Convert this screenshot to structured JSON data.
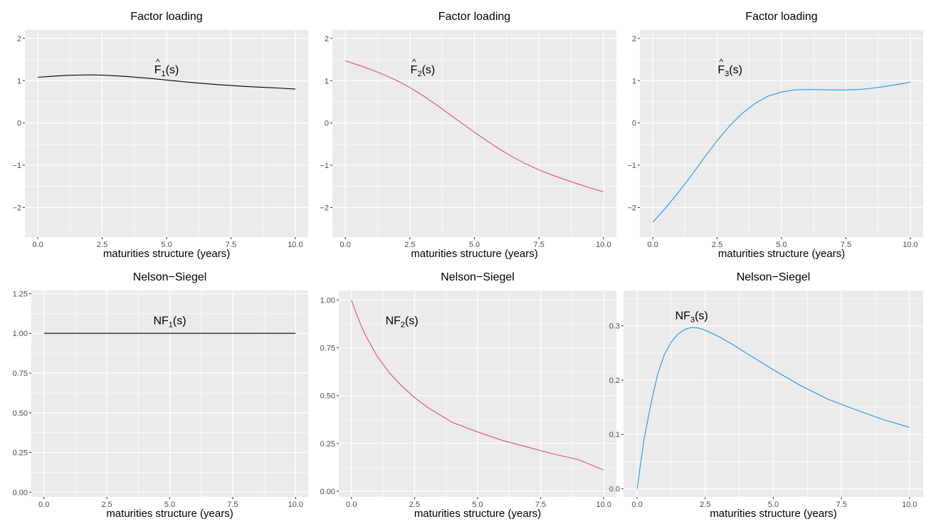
{
  "chart_data": [
    {
      "type": "line",
      "title": "Factor loading",
      "xlabel": "maturities structure (years)",
      "ylabel": "",
      "xlim": [
        -0.5,
        10.5
      ],
      "ylim": [
        -2.7,
        2.2
      ],
      "xticks": [
        0,
        2.5,
        5,
        7.5,
        10
      ],
      "xtick_labels": [
        "0.0",
        "2.5",
        "5.0",
        "7.5",
        "10.0"
      ],
      "yticks": [
        -2,
        -1,
        0,
        1,
        2
      ],
      "ytick_labels": [
        "−2",
        "−1",
        "0",
        "1",
        "2"
      ],
      "grid": true,
      "color": "#000000",
      "annotation": {
        "hat": "^",
        "base": "F",
        "sub": "1",
        "suffix": "(s)",
        "x": 5.0,
        "y": 1.27
      },
      "series": [
        {
          "x": [
            0,
            0.5,
            1,
            1.5,
            2,
            2.5,
            3,
            3.5,
            4,
            4.5,
            5,
            5.5,
            6,
            6.5,
            7,
            7.5,
            8,
            8.5,
            9,
            9.5,
            10
          ],
          "y": [
            1.08,
            1.1,
            1.12,
            1.13,
            1.135,
            1.13,
            1.115,
            1.095,
            1.07,
            1.045,
            1.015,
            0.985,
            0.955,
            0.93,
            0.905,
            0.885,
            0.865,
            0.85,
            0.835,
            0.82,
            0.8
          ]
        }
      ]
    },
    {
      "type": "line",
      "title": "Factor loading",
      "xlabel": "maturities structure (years)",
      "ylabel": "",
      "xlim": [
        -0.5,
        10.5
      ],
      "ylim": [
        -2.7,
        2.2
      ],
      "xticks": [
        0,
        2.5,
        5,
        7.5,
        10
      ],
      "xtick_labels": [
        "0.0",
        "2.5",
        "5.0",
        "7.5",
        "10.0"
      ],
      "yticks": [
        -2,
        -1,
        0,
        1,
        2
      ],
      "ytick_labels": [
        "−2",
        "−1",
        "0",
        "1",
        "2"
      ],
      "grid": true,
      "color": "#DF536B",
      "annotation": {
        "hat": "^",
        "base": "F",
        "sub": "2",
        "suffix": "(s)",
        "x": 3.0,
        "y": 1.27
      },
      "series": [
        {
          "x": [
            0,
            0.5,
            1,
            1.5,
            2,
            2.5,
            3,
            3.5,
            4,
            4.5,
            5,
            5.5,
            6,
            6.5,
            7,
            7.5,
            8,
            8.5,
            9,
            9.5,
            10
          ],
          "y": [
            1.47,
            1.37,
            1.26,
            1.14,
            1.0,
            0.84,
            0.65,
            0.44,
            0.22,
            0.0,
            -0.22,
            -0.43,
            -0.63,
            -0.81,
            -0.97,
            -1.11,
            -1.23,
            -1.34,
            -1.44,
            -1.54,
            -1.63
          ]
        }
      ]
    },
    {
      "type": "line",
      "title": "Factor loading",
      "xlabel": "maturities structure (years)",
      "ylabel": "",
      "xlim": [
        -0.5,
        10.5
      ],
      "ylim": [
        -2.7,
        2.2
      ],
      "xticks": [
        0,
        2.5,
        5,
        7.5,
        10
      ],
      "xtick_labels": [
        "0.0",
        "2.5",
        "5.0",
        "7.5",
        "10.0"
      ],
      "yticks": [
        -2,
        -1,
        0,
        1,
        2
      ],
      "ytick_labels": [
        "−2",
        "−1",
        "0",
        "1",
        "2"
      ],
      "grid": true,
      "color": "#2297E6",
      "annotation": {
        "hat": "^",
        "base": "F",
        "sub": "3",
        "suffix": "(s)",
        "x": 3.0,
        "y": 1.27
      },
      "series": [
        {
          "x": [
            0,
            0.5,
            1,
            1.5,
            2,
            2.5,
            3,
            3.5,
            4,
            4.5,
            5,
            5.5,
            6,
            6.5,
            7,
            7.5,
            8,
            8.5,
            9,
            9.5,
            10
          ],
          "y": [
            -2.35,
            -2.01,
            -1.64,
            -1.24,
            -0.82,
            -0.42,
            -0.06,
            0.24,
            0.47,
            0.64,
            0.73,
            0.78,
            0.79,
            0.785,
            0.78,
            0.78,
            0.79,
            0.82,
            0.86,
            0.91,
            0.96
          ]
        }
      ]
    },
    {
      "type": "line",
      "title": "Nelson−Siegel",
      "xlabel": "maturities structure (years)",
      "ylabel": "",
      "xlim": [
        -0.5,
        10.5
      ],
      "ylim": [
        -0.03,
        1.27
      ],
      "xticks": [
        0,
        2.5,
        5,
        7.5,
        10
      ],
      "xtick_labels": [
        "0.0",
        "2.5",
        "5.0",
        "7.5",
        "10.0"
      ],
      "yticks": [
        0,
        0.25,
        0.5,
        0.75,
        1,
        1.25
      ],
      "ytick_labels": [
        "0.00",
        "0.25",
        "0.50",
        "0.75",
        "1.00",
        "1.25"
      ],
      "grid": true,
      "color": "#000000",
      "annotation": {
        "hat": "",
        "base": "NF",
        "sub": "1",
        "suffix": "(s)",
        "x": 5.0,
        "y": 1.085
      },
      "series": [
        {
          "x": [
            0,
            10
          ],
          "y": [
            1.0,
            1.0
          ]
        }
      ]
    },
    {
      "type": "line",
      "title": "Nelson−Siegel",
      "xlabel": "maturities structure (years)",
      "ylabel": "",
      "xlim": [
        -0.5,
        10.5
      ],
      "ylim": [
        -0.03,
        1.05
      ],
      "xticks": [
        0,
        2.5,
        5,
        7.5,
        10
      ],
      "xtick_labels": [
        "0.0",
        "2.5",
        "5.0",
        "7.5",
        "10.0"
      ],
      "yticks": [
        0,
        0.25,
        0.5,
        0.75,
        1
      ],
      "ytick_labels": [
        "0.00",
        "0.25",
        "0.50",
        "0.75",
        "1.00"
      ],
      "grid": true,
      "color": "#DF536B",
      "annotation": {
        "hat": "",
        "base": "NF",
        "sub": "2",
        "suffix": "(s)",
        "x": 2.0,
        "y": 0.895
      },
      "series": [
        {
          "x": [
            0,
            0.25,
            0.5,
            0.75,
            1,
            1.5,
            2,
            2.5,
            3,
            3.5,
            4,
            5,
            6,
            7,
            8,
            9,
            10
          ],
          "y": [
            1.0,
            0.91,
            0.83,
            0.77,
            0.71,
            0.62,
            0.55,
            0.49,
            0.44,
            0.4,
            0.36,
            0.31,
            0.265,
            0.23,
            0.195,
            0.165,
            0.11
          ]
        }
      ]
    },
    {
      "type": "line",
      "title": "Nelson−Siegel",
      "xlabel": "maturities structure (years)",
      "ylabel": "",
      "xlim": [
        -0.5,
        10.5
      ],
      "ylim": [
        -0.015,
        0.365
      ],
      "xticks": [
        0,
        2.5,
        5,
        7.5,
        10
      ],
      "xtick_labels": [
        "0.0",
        "2.5",
        "5.0",
        "7.5",
        "10.0"
      ],
      "yticks": [
        0,
        0.1,
        0.2,
        0.3
      ],
      "ytick_labels": [
        "0.0",
        "0.1",
        "0.2",
        "0.3"
      ],
      "grid": true,
      "color": "#2297E6",
      "annotation": {
        "hat": "",
        "base": "NF",
        "sub": "3",
        "suffix": "(s)",
        "x": 2.0,
        "y": 0.32
      },
      "series": [
        {
          "x": [
            0,
            0.25,
            0.5,
            0.75,
            1,
            1.25,
            1.5,
            1.75,
            2,
            2.25,
            2.5,
            3,
            3.5,
            4,
            5,
            6,
            7,
            8,
            9,
            10
          ],
          "y": [
            0.0,
            0.09,
            0.155,
            0.21,
            0.247,
            0.27,
            0.285,
            0.293,
            0.297,
            0.296,
            0.292,
            0.28,
            0.266,
            0.25,
            0.219,
            0.19,
            0.165,
            0.146,
            0.128,
            0.113
          ]
        }
      ]
    }
  ]
}
